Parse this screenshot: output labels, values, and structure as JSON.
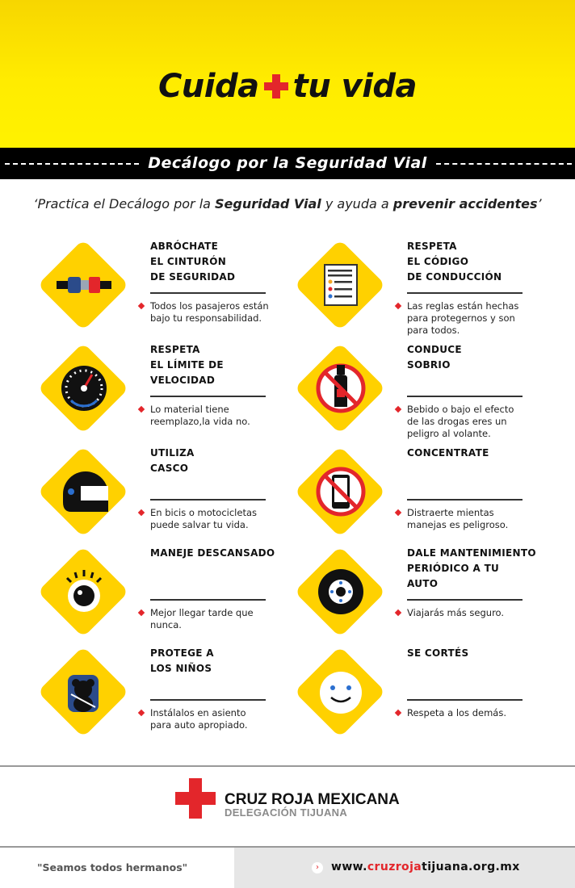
{
  "header": {
    "title_left": "Cuida",
    "title_right": "tu vida",
    "band": "Decálogo por la Seguridad Vial"
  },
  "subtitle": {
    "p1": "‘Practica el Decálogo por la ",
    "b1": "Seguridad Vial",
    "p2": " y ayuda a ",
    "b2": "prevenir accidentes",
    "p3": "’"
  },
  "items": [
    {
      "icon": "seatbelt-icon",
      "lines": [
        "ABRÓCHATE",
        "EL CINTURÓN",
        "DE SEGURIDAD"
      ],
      "desc": [
        "Todos los pasajeros están",
        "bajo tu responsabilidad."
      ]
    },
    {
      "icon": "document-checklist-icon",
      "lines": [
        "RESPETA",
        "EL CÓDIGO",
        "DE CONDUCCIÓN"
      ],
      "desc": [
        "Las reglas están hechas",
        "para protegernos y son",
        "para todos."
      ]
    },
    {
      "icon": "speedometer-icon",
      "lines": [
        "RESPETA",
        "EL LÍMITE DE",
        "VELOCIDAD"
      ],
      "desc": [
        "Lo material tiene",
        "reemplazo,la vida no."
      ]
    },
    {
      "icon": "no-alcohol-icon",
      "lines": [
        "CONDUCE",
        "SOBRIO"
      ],
      "desc": [
        "Bebido o bajo el efecto",
        "de las drogas eres un",
        "peligro al volante."
      ]
    },
    {
      "icon": "helmet-icon",
      "lines": [
        "UTILIZA",
        "CASCO"
      ],
      "desc": [
        "En bicis o motocicletas",
        "puede salvar tu vida."
      ]
    },
    {
      "icon": "no-phone-icon",
      "lines": [
        "CONCENTRATE"
      ],
      "desc": [
        "Distraerte mientas",
        "manejas es peligroso."
      ]
    },
    {
      "icon": "eye-icon",
      "lines": [
        "MANEJE DESCANSADO"
      ],
      "desc": [
        "Mejor llegar tarde que",
        "nunca."
      ]
    },
    {
      "icon": "tire-icon",
      "lines": [
        "DALE MANTENIMIENTO",
        "PERIÓDICO A TU",
        "AUTO"
      ],
      "desc": [
        "Viajarás más seguro."
      ]
    },
    {
      "icon": "child-seat-icon",
      "lines": [
        "PROTEGE A",
        "LOS NIÑOS"
      ],
      "desc": [
        "Instálalos en asiento",
        "para auto apropiado."
      ]
    },
    {
      "icon": "smiley-icon",
      "lines": [
        "SE CORTÉS"
      ],
      "desc": [
        "Respeta a los demás."
      ]
    }
  ],
  "footer": {
    "org": "CRUZ ROJA MEXICANA",
    "delegation": "DELEGACIÓN TIJUANA",
    "motto": "\"Seamos todos hermanos\"",
    "url_pre": "www.",
    "url_red": "cruzroja",
    "url_post": "tijuana.org.mx"
  },
  "colors": {
    "yellow": "#ffd100",
    "red": "#e3262b",
    "black": "#000000"
  }
}
